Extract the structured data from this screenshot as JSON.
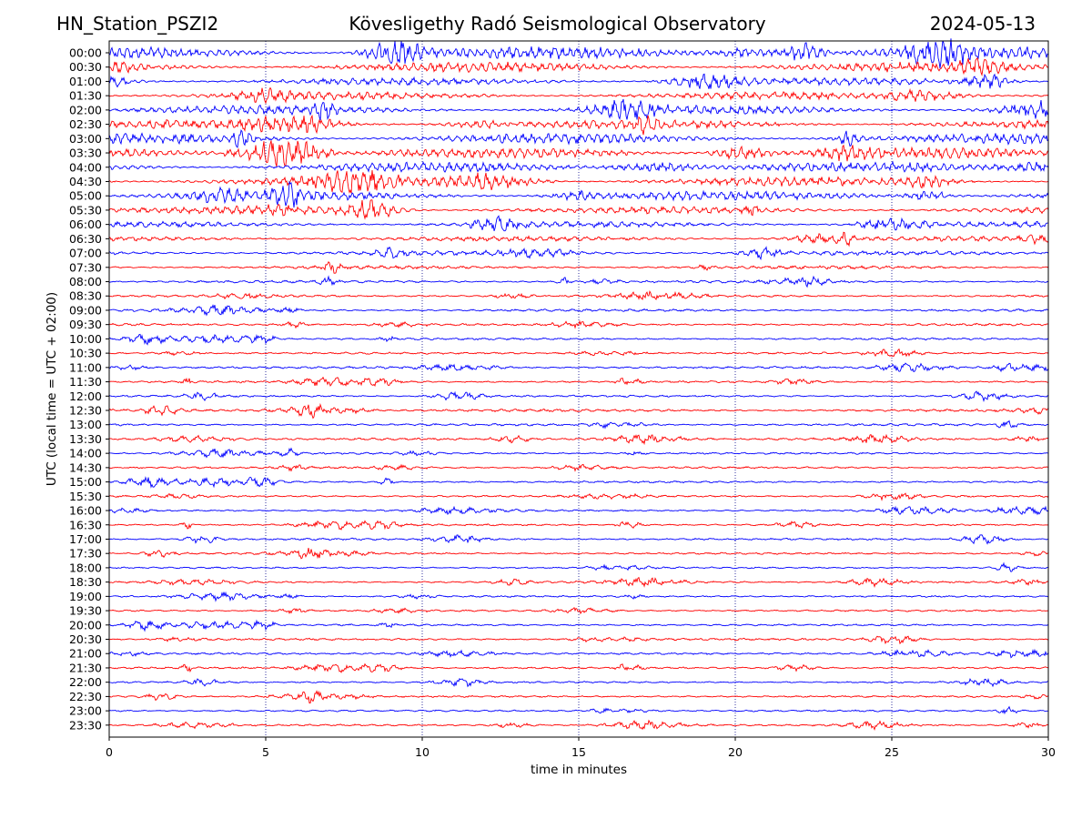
{
  "header": {
    "station": "HN_Station_PSZI2",
    "observatory": "Kövesligethy Radó Seismological Observatory",
    "date": "2024-05-13"
  },
  "colors": {
    "even_trace": "#0000ff",
    "odd_trace": "#ff0000",
    "grid": "#00008b"
  },
  "chart_data": {
    "type": "line",
    "title": "Kövesligethy Radó Seismological Observatory",
    "xlabel": "time in minutes",
    "ylabel": "UTC (local time = UTC + 02:00)",
    "xlim": [
      0,
      30
    ],
    "x_ticks": [
      0,
      5,
      10,
      15,
      20,
      25,
      30
    ],
    "grid": "vertical dotted at 5-minute intervals",
    "rows": [
      {
        "label": "00:00",
        "activity": 1.0
      },
      {
        "label": "00:30",
        "activity": 0.8
      },
      {
        "label": "01:00",
        "activity": 0.55
      },
      {
        "label": "01:30",
        "activity": 0.6
      },
      {
        "label": "02:00",
        "activity": 0.7
      },
      {
        "label": "02:30",
        "activity": 0.7
      },
      {
        "label": "03:00",
        "activity": 0.85
      },
      {
        "label": "03:30",
        "activity": 0.8
      },
      {
        "label": "04:00",
        "activity": 0.8
      },
      {
        "label": "04:30",
        "activity": 0.75
      },
      {
        "label": "05:00",
        "activity": 0.75
      },
      {
        "label": "05:30",
        "activity": 0.5
      },
      {
        "label": "06:00",
        "activity": 0.4
      },
      {
        "label": "06:30",
        "activity": 0.35
      },
      {
        "label": "07:00",
        "activity": 0.3
      },
      {
        "label": "07:30",
        "activity": 0.2
      },
      {
        "label": "08:00",
        "activity": 0.15
      },
      {
        "label": "08:30",
        "activity": 0.12
      },
      {
        "label": "09:00",
        "activity": 0.12
      },
      {
        "label": "09:30",
        "activity": 0.1
      },
      {
        "label": "10:00",
        "activity": 0.08
      },
      {
        "label": "10:30",
        "activity": 0.08
      },
      {
        "label": "11:00",
        "activity": 0.1
      },
      {
        "label": "11:30",
        "activity": 0.08
      },
      {
        "label": "12:00",
        "activity": 0.08
      },
      {
        "label": "12:30",
        "activity": 0.15
      },
      {
        "label": "13:00",
        "activity": 0.1
      },
      {
        "label": "13:30",
        "activity": 0.1
      },
      {
        "label": "14:00",
        "activity": 0.07
      },
      {
        "label": "14:30",
        "activity": 0.08
      },
      {
        "label": "15:00",
        "activity": 0.07
      },
      {
        "label": "15:30",
        "activity": 0.08
      },
      {
        "label": "16:00",
        "activity": 0.07
      },
      {
        "label": "16:30",
        "activity": 0.06
      },
      {
        "label": "17:00",
        "activity": 0.08
      },
      {
        "label": "17:30",
        "activity": 0.06
      },
      {
        "label": "18:00",
        "activity": 0.05
      },
      {
        "label": "18:30",
        "activity": 0.06
      },
      {
        "label": "19:00",
        "activity": 0.05
      },
      {
        "label": "19:30",
        "activity": 0.05
      },
      {
        "label": "20:00",
        "activity": 0.06
      },
      {
        "label": "20:30",
        "activity": 0.08
      },
      {
        "label": "21:00",
        "activity": 0.07
      },
      {
        "label": "21:30",
        "activity": 0.07
      },
      {
        "label": "22:00",
        "activity": 0.05
      },
      {
        "label": "22:30",
        "activity": 0.05
      },
      {
        "label": "23:00",
        "activity": 0.05
      },
      {
        "label": "23:30",
        "activity": 0.05
      }
    ]
  }
}
